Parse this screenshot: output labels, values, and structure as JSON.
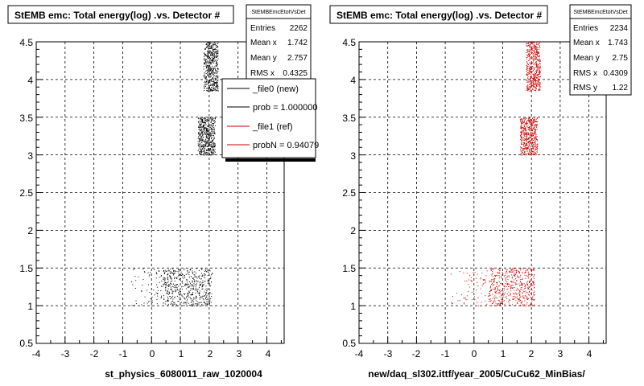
{
  "footer_text": "",
  "chart_data": [
    {
      "type": "scatter",
      "title": "StEMB emc: Total energy(log) .vs. Detector #",
      "xlabel": "st_physics_6080011_raw_1020004",
      "ylabel": "",
      "xlim": [
        -4,
        4.6
      ],
      "ylim": [
        0.5,
        4.5
      ],
      "x_ticks": [
        "-4",
        "-3",
        "-2",
        "-1",
        "0",
        "1",
        "2",
        "3",
        "4"
      ],
      "y_ticks": [
        "0.5",
        "1",
        "1.5",
        "2",
        "2.5",
        "3",
        "3.5",
        "4",
        "4.5"
      ],
      "grid": true,
      "marker_color": "#000000",
      "clusters": [
        {
          "x_range": [
            1.8,
            2.3
          ],
          "y_range": [
            3.85,
            4.5
          ],
          "density": "high"
        },
        {
          "x_range": [
            1.6,
            2.2
          ],
          "y_range": [
            3.0,
            3.5
          ],
          "density": "high"
        },
        {
          "x_range": [
            0.4,
            2.1
          ],
          "y_range": [
            1.0,
            1.5
          ],
          "density": "high"
        },
        {
          "x_range": [
            -1.0,
            0.4
          ],
          "y_range": [
            1.0,
            1.5
          ],
          "density": "sparse"
        }
      ],
      "stats": {
        "header": "StEMBEmcEtotVsDet",
        "rows": [
          {
            "label": "Entries",
            "value": "2262"
          },
          {
            "label": "Mean x",
            "value": "1.742"
          },
          {
            "label": "Mean y",
            "value": "2.757"
          },
          {
            "label": "RMS x",
            "value": "0.4325"
          }
        ]
      },
      "legend": {
        "entries": [
          {
            "label": "_file0 (new)",
            "color": "#000000"
          },
          {
            "label": "prob = 1.000000",
            "color": "#000000"
          },
          {
            "label": "_file1 (ref)",
            "color": "#cc0000"
          },
          {
            "label": "probN = 0.94079",
            "color": "#cc0000"
          }
        ]
      }
    },
    {
      "type": "scatter",
      "title": "StEMB emc: Total energy(log) .vs. Detector #",
      "xlabel": "new/daq_sl302.ittf/year_2005/CuCu62_MinBias/",
      "ylabel": "",
      "xlim": [
        -4,
        4.6
      ],
      "ylim": [
        0.5,
        4.5
      ],
      "x_ticks": [
        "-4",
        "-3",
        "-2",
        "-1",
        "0",
        "1",
        "2",
        "3",
        "4"
      ],
      "y_ticks": [
        "0.5",
        "1",
        "1.5",
        "2",
        "2.5",
        "3",
        "3.5",
        "4",
        "4.5"
      ],
      "grid": true,
      "marker_color": "#d00000",
      "clusters": [
        {
          "x_range": [
            1.8,
            2.3
          ],
          "y_range": [
            3.85,
            4.5
          ],
          "density": "high"
        },
        {
          "x_range": [
            1.6,
            2.2
          ],
          "y_range": [
            3.0,
            3.5
          ],
          "density": "high"
        },
        {
          "x_range": [
            0.5,
            2.1
          ],
          "y_range": [
            1.0,
            1.5
          ],
          "density": "high"
        },
        {
          "x_range": [
            -1.0,
            0.5
          ],
          "y_range": [
            1.0,
            1.5
          ],
          "density": "sparse"
        }
      ],
      "stats": {
        "header": "StEMBEmcEtotVsDet",
        "rows": [
          {
            "label": "Entries",
            "value": "2234"
          },
          {
            "label": "Mean x",
            "value": "1.743"
          },
          {
            "label": "Mean y",
            "value": "2.75"
          },
          {
            "label": "RMS x",
            "value": "0.4309"
          },
          {
            "label": "RMS y",
            "value": "1.22"
          }
        ]
      }
    }
  ]
}
